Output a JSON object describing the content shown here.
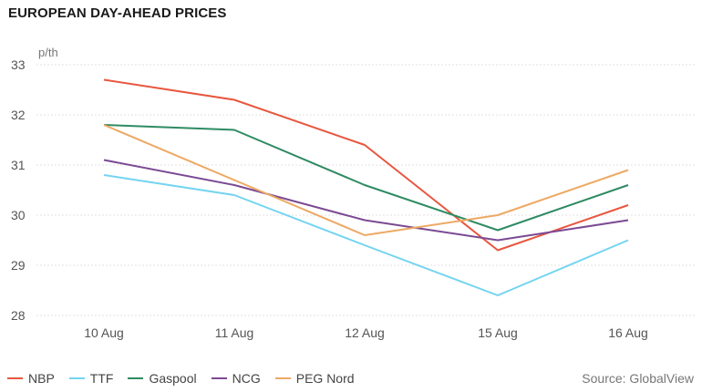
{
  "chart_data": {
    "type": "line",
    "title": "EUROPEAN DAY-AHEAD PRICES",
    "ylabel": "p/th",
    "categories": [
      "10 Aug",
      "11 Aug",
      "12 Aug",
      "15 Aug",
      "16 Aug"
    ],
    "ylim": [
      28,
      33
    ],
    "yticks": [
      28,
      29,
      30,
      31,
      32,
      33
    ],
    "grid": true,
    "legend_position": "bottom-left",
    "series": [
      {
        "name": "NBP",
        "color": "#e8573f",
        "values": [
          32.7,
          32.3,
          31.4,
          29.3,
          30.2
        ]
      },
      {
        "name": "TTF",
        "color": "#74d4f0",
        "values": [
          30.8,
          30.4,
          29.4,
          28.4,
          29.5
        ]
      },
      {
        "name": "Gaspool",
        "color": "#2e8b63",
        "values": [
          31.8,
          31.7,
          30.6,
          29.7,
          30.6
        ]
      },
      {
        "name": "NCG",
        "color": "#7b4a93",
        "values": [
          31.1,
          30.6,
          29.9,
          29.5,
          29.9
        ]
      },
      {
        "name": "PEG Nord",
        "color": "#eda964",
        "values": [
          31.8,
          30.7,
          29.6,
          30.0,
          30.9
        ]
      }
    ],
    "source": "Source: GlobalView"
  }
}
